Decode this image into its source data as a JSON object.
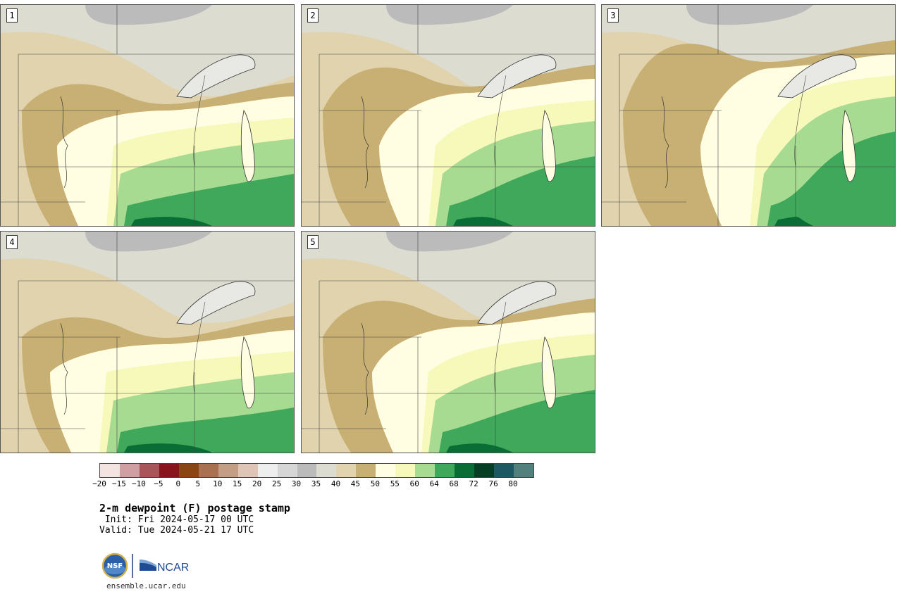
{
  "panels": [
    {
      "label": "1",
      "variant": 0
    },
    {
      "label": "2",
      "variant": 1
    },
    {
      "label": "3",
      "variant": 2
    },
    {
      "label": "4",
      "variant": 3
    },
    {
      "label": "5",
      "variant": 4
    }
  ],
  "legend": {
    "colors": [
      "#f3e4e2",
      "#cf9fa3",
      "#a95459",
      "#88131d",
      "#8b4513",
      "#aa7150",
      "#c49e84",
      "#dfc5b6",
      "#eeeeee",
      "#d6d6d6",
      "#bbbbbb",
      "#dddcd0",
      "#e0d3ad",
      "#c8b074",
      "#fffee2",
      "#f6f9b9",
      "#a7db92",
      "#3fa85a",
      "#0a6d36",
      "#063d25",
      "#1d5863",
      "#52807d"
    ],
    "tick_labels": [
      "−20",
      "−15",
      "−10",
      "−5",
      "0",
      "5",
      "10",
      "15",
      "20",
      "25",
      "30",
      "35",
      "40",
      "45",
      "50",
      "55",
      "60",
      "64",
      "68",
      "72",
      "76",
      "80"
    ]
  },
  "title": "2-m dewpoint (F) postage stamp",
  "init": " Init: Fri 2024-05-17 00 UTC",
  "valid": "Valid: Tue 2024-05-21 17 UTC",
  "logo": {
    "nsf": "NSF",
    "ncar": "NCAR"
  },
  "site": "ensemble.ucar.edu"
}
